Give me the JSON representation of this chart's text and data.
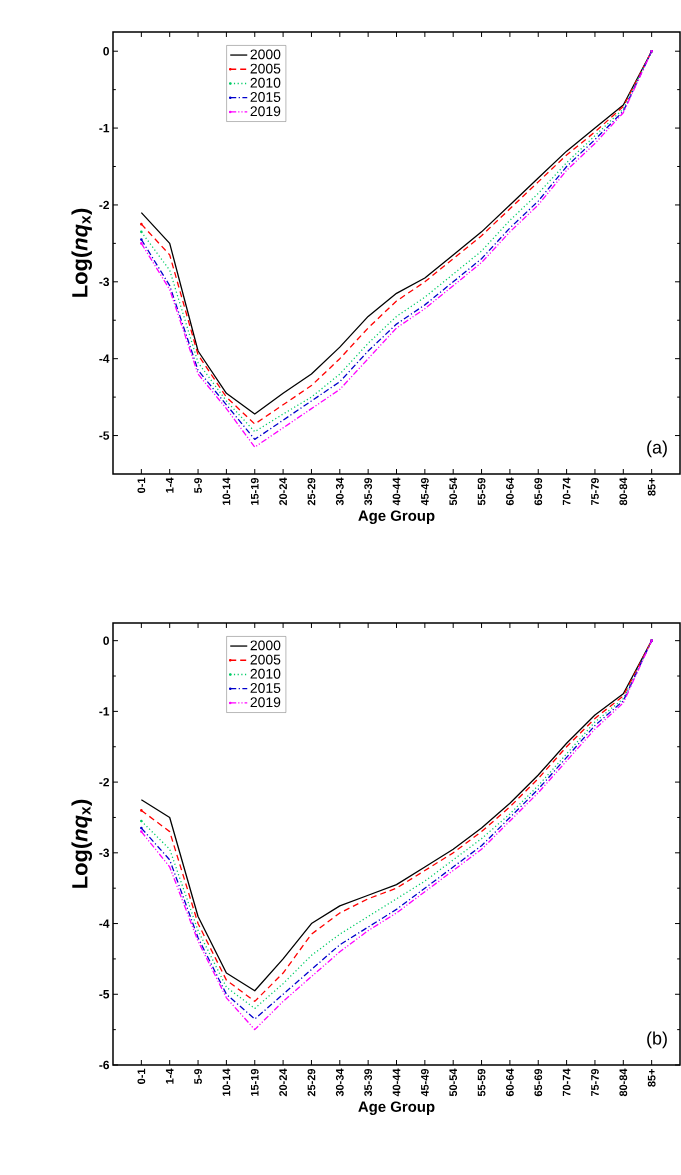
{
  "chart_data": [
    {
      "type": "line",
      "xlabel": "Age Group",
      "ylabel": "Log(*nq*$_{x}$)",
      "categories": [
        "0-1",
        "1-4",
        "5-9",
        "10-14",
        "15-19",
        "20-24",
        "25-29",
        "30-34",
        "35-39",
        "40-44",
        "45-49",
        "50-54",
        "55-59",
        "60-64",
        "65-69",
        "70-74",
        "75-79",
        "80-84",
        "85+"
      ],
      "ylim": [
        -5.5,
        0.25
      ],
      "yticks": [
        -5,
        -4,
        -3,
        -2,
        -1,
        0
      ],
      "legend": "top left",
      "marker": "none",
      "annotations": [
        "(a)"
      ],
      "series": [
        {
          "name": "2000",
          "color": "#000000",
          "line_style": "solid",
          "values": [
            -2.1,
            -2.5,
            -3.9,
            -4.45,
            -4.72,
            -4.45,
            -4.2,
            -3.85,
            -3.45,
            -3.15,
            -2.95,
            -2.65,
            -2.35,
            -2.0,
            -1.65,
            -1.3,
            -1.0,
            -0.7,
            0
          ]
        },
        {
          "name": "2005",
          "color": "#ff0000",
          "line_style": "dashed",
          "values": [
            -2.25,
            -2.65,
            -3.95,
            -4.5,
            -4.85,
            -4.6,
            -4.35,
            -4.0,
            -3.6,
            -3.25,
            -3.0,
            -2.7,
            -2.4,
            -2.05,
            -1.7,
            -1.35,
            -1.05,
            -0.72,
            0
          ]
        },
        {
          "name": "2010",
          "color": "#00cc66",
          "line_style": "dotted",
          "values": [
            -2.35,
            -2.85,
            -4.05,
            -4.55,
            -4.95,
            -4.72,
            -4.5,
            -4.2,
            -3.8,
            -3.45,
            -3.2,
            -2.9,
            -2.6,
            -2.2,
            -1.85,
            -1.45,
            -1.1,
            -0.75,
            0
          ]
        },
        {
          "name": "2015",
          "color": "#0000cc",
          "line_style": "dashdot",
          "values": [
            -2.45,
            -3.05,
            -4.15,
            -4.6,
            -5.05,
            -4.8,
            -4.55,
            -4.3,
            -3.9,
            -3.55,
            -3.3,
            -3.0,
            -2.7,
            -2.3,
            -1.95,
            -1.5,
            -1.15,
            -0.78,
            0
          ]
        },
        {
          "name": "2019",
          "color": "#ff00ff",
          "line_style": "dashdotdot",
          "values": [
            -2.5,
            -3.1,
            -4.2,
            -4.65,
            -5.15,
            -4.9,
            -4.65,
            -4.4,
            -4.0,
            -3.6,
            -3.35,
            -3.05,
            -2.75,
            -2.35,
            -2.0,
            -1.55,
            -1.2,
            -0.8,
            0
          ]
        }
      ]
    },
    {
      "type": "line",
      "xlabel": "Age Group",
      "ylabel": "Log(*nq*$_{x}$)",
      "categories": [
        "0-1",
        "1-4",
        "5-9",
        "10-14",
        "15-19",
        "20-24",
        "25-29",
        "30-34",
        "35-39",
        "40-44",
        "45-49",
        "50-54",
        "55-59",
        "60-64",
        "65-69",
        "70-74",
        "75-79",
        "80-84",
        "85+"
      ],
      "ylim": [
        -6,
        0.25
      ],
      "yticks": [
        -6,
        -5,
        -4,
        -3,
        -2,
        -1,
        0
      ],
      "legend": "top left",
      "marker": "none",
      "annotations": [
        "(b)"
      ],
      "series": [
        {
          "name": "2000",
          "color": "#000000",
          "line_style": "solid",
          "values": [
            -2.25,
            -2.5,
            -3.9,
            -4.7,
            -4.95,
            -4.5,
            -4.0,
            -3.75,
            -3.6,
            -3.45,
            -3.2,
            -2.95,
            -2.65,
            -2.3,
            -1.9,
            -1.45,
            -1.05,
            -0.75,
            0
          ]
        },
        {
          "name": "2005",
          "color": "#ff0000",
          "line_style": "dashed",
          "values": [
            -2.4,
            -2.7,
            -4.0,
            -4.8,
            -5.1,
            -4.7,
            -4.15,
            -3.85,
            -3.65,
            -3.5,
            -3.25,
            -3.0,
            -2.7,
            -2.35,
            -1.95,
            -1.5,
            -1.1,
            -0.78,
            0
          ]
        },
        {
          "name": "2010",
          "color": "#00cc66",
          "line_style": "dotted",
          "values": [
            -2.55,
            -2.95,
            -4.1,
            -4.9,
            -5.2,
            -4.85,
            -4.45,
            -4.15,
            -3.9,
            -3.65,
            -3.4,
            -3.1,
            -2.8,
            -2.45,
            -2.05,
            -1.6,
            -1.15,
            -0.82,
            0
          ]
        },
        {
          "name": "2015",
          "color": "#0000cc",
          "line_style": "dashdot",
          "values": [
            -2.65,
            -3.1,
            -4.2,
            -5.0,
            -5.35,
            -5.0,
            -4.65,
            -4.3,
            -4.05,
            -3.8,
            -3.5,
            -3.2,
            -2.9,
            -2.5,
            -2.1,
            -1.65,
            -1.2,
            -0.85,
            0
          ]
        },
        {
          "name": "2019",
          "color": "#ff00ff",
          "line_style": "dashdotdot",
          "values": [
            -2.7,
            -3.2,
            -4.25,
            -5.05,
            -5.5,
            -5.1,
            -4.75,
            -4.4,
            -4.1,
            -3.85,
            -3.55,
            -3.25,
            -2.95,
            -2.55,
            -2.15,
            -1.7,
            -1.25,
            -0.88,
            0
          ]
        }
      ]
    }
  ]
}
